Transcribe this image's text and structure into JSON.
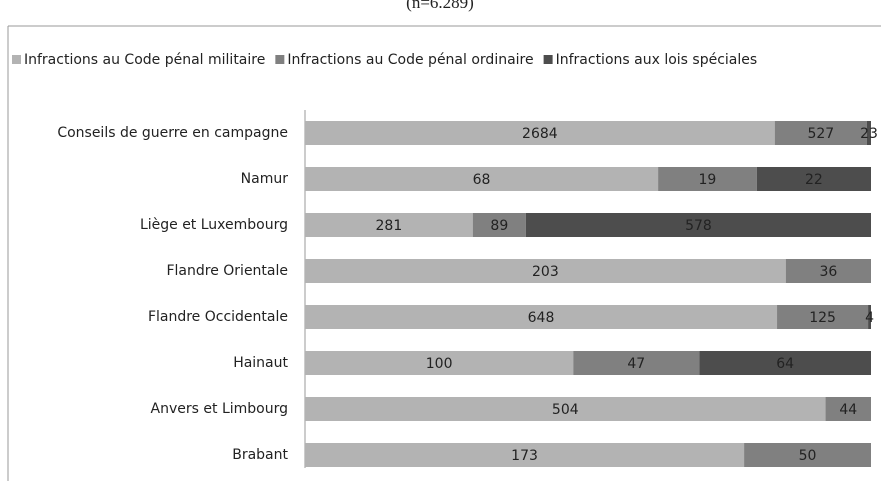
{
  "chart_data": {
    "type": "bar",
    "orientation": "horizontal",
    "stacking": "percent",
    "title": "(n=6.289)",
    "categories": [
      "Conseils de guerre en campagne",
      "Namur",
      "Liège et Luxembourg",
      "Flandre Orientale",
      "Flandre Occidentale",
      "Hainaut",
      "Anvers et Limbourg",
      "Brabant"
    ],
    "series": [
      {
        "name": "Infractions au Code pénal militaire",
        "color": "#b3b3b3",
        "values": [
          2684,
          68,
          281,
          203,
          648,
          100,
          504,
          173
        ]
      },
      {
        "name": "Infractions au Code pénal ordinaire",
        "color": "#808080",
        "values": [
          527,
          19,
          89,
          36,
          125,
          47,
          44,
          50
        ]
      },
      {
        "name": "Infractions aux lois spéciales",
        "color": "#4d4d4d",
        "values": [
          23,
          22,
          578,
          null,
          4,
          64,
          null,
          null
        ]
      }
    ],
    "legend": "top"
  }
}
